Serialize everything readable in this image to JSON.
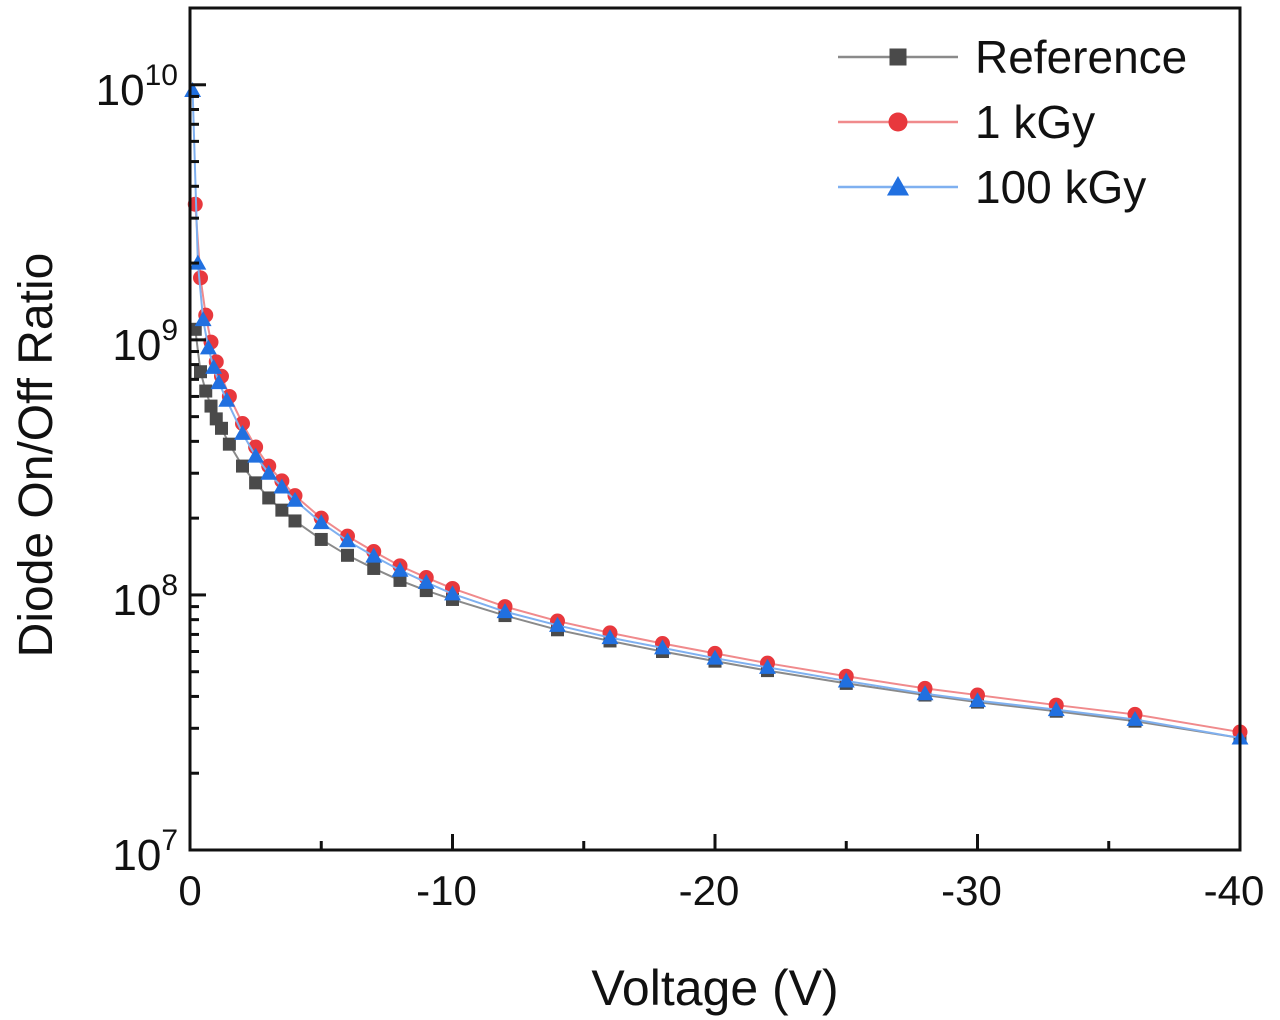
{
  "chart_data": {
    "type": "scatter",
    "title": "",
    "xlabel": "Voltage (V)",
    "ylabel": "Diode On/Off Ratio",
    "xlim": [
      0,
      -40
    ],
    "ylim": [
      10000000.0,
      20000000000.0
    ],
    "yscale": "log",
    "grid": false,
    "legend_position": "top-right",
    "x_ticks": [
      0,
      -10,
      -20,
      -30,
      -40
    ],
    "x_tick_labels": [
      "0",
      "-10",
      "-20",
      "-30",
      "-40"
    ],
    "y_ticks": [
      10000000.0,
      100000000.0,
      1000000000.0,
      10000000000.0
    ],
    "y_tick_labels": [
      {
        "base": "10",
        "exp": "7"
      },
      {
        "base": "10",
        "exp": "8"
      },
      {
        "base": "10",
        "exp": "9"
      },
      {
        "base": "10",
        "exp": "10"
      }
    ],
    "series": [
      {
        "name": "Reference",
        "color": "#4a4a4a",
        "line_color": "#8a8a8a",
        "marker": "square",
        "x": [
          -0.2,
          -0.4,
          -0.6,
          -0.8,
          -1,
          -1.2,
          -1.5,
          -2,
          -2.5,
          -3,
          -3.5,
          -4,
          -5,
          -6,
          -7,
          -8,
          -9,
          -10,
          -12,
          -14,
          -16,
          -18,
          -20,
          -22,
          -25,
          -28,
          -30,
          -33,
          -36,
          -40
        ],
        "y": [
          1100000000.0,
          750000000.0,
          630000000.0,
          550000000.0,
          490000000.0,
          450000000.0,
          390000000.0,
          320000000.0,
          275000000.0,
          240000000.0,
          215000000.0,
          195000000.0,
          165000000.0,
          143000000.0,
          127000000.0,
          114000000.0,
          104000000.0,
          96000000.0,
          83000000.0,
          73000000.0,
          66000000.0,
          60000000.0,
          55000000.0,
          50500000.0,
          45000000.0,
          40500000.0,
          38000000.0,
          35000000.0,
          32000000.0,
          27500000.0
        ]
      },
      {
        "name": "1 kGy",
        "color": "#e8383d",
        "line_color": "#f08a8c",
        "marker": "circle",
        "x": [
          -0.2,
          -0.4,
          -0.6,
          -0.8,
          -1,
          -1.2,
          -1.5,
          -2,
          -2.5,
          -3,
          -3.5,
          -4,
          -5,
          -6,
          -7,
          -8,
          -9,
          -10,
          -12,
          -14,
          -16,
          -18,
          -20,
          -22,
          -25,
          -28,
          -30,
          -33,
          -36,
          -40
        ],
        "y": [
          3400000000.0,
          1750000000.0,
          1250000000.0,
          980000000.0,
          820000000.0,
          720000000.0,
          600000000.0,
          470000000.0,
          380000000.0,
          320000000.0,
          280000000.0,
          245000000.0,
          200000000.0,
          170000000.0,
          148000000.0,
          130000000.0,
          117000000.0,
          106000000.0,
          90000000.0,
          79000000.0,
          71000000.0,
          64500000.0,
          59000000.0,
          54000000.0,
          48000000.0,
          43000000.0,
          40500000.0,
          37000000.0,
          34000000.0,
          29000000.0
        ]
      },
      {
        "name": "100 kGy",
        "color": "#2170e0",
        "line_color": "#7fb0f0",
        "marker": "triangle",
        "x": [
          -0.1,
          -0.3,
          -0.5,
          -0.7,
          -0.9,
          -1.1,
          -1.4,
          -2,
          -2.5,
          -3,
          -3.5,
          -4,
          -5,
          -6,
          -7,
          -8,
          -9,
          -10,
          -12,
          -14,
          -16,
          -18,
          -20,
          -22,
          -25,
          -28,
          -30,
          -33,
          -36,
          -40
        ],
        "y": [
          9500000000.0,
          2000000000.0,
          1200000000.0,
          930000000.0,
          780000000.0,
          680000000.0,
          580000000.0,
          430000000.0,
          350000000.0,
          300000000.0,
          265000000.0,
          235000000.0,
          192000000.0,
          163000000.0,
          142000000.0,
          125000000.0,
          112000000.0,
          101000000.0,
          86000000.0,
          76000000.0,
          68000000.0,
          62000000.0,
          56500000.0,
          52000000.0,
          46000000.0,
          41000000.0,
          38500000.0,
          35500000.0,
          32500000.0,
          27500000.0
        ]
      }
    ]
  }
}
